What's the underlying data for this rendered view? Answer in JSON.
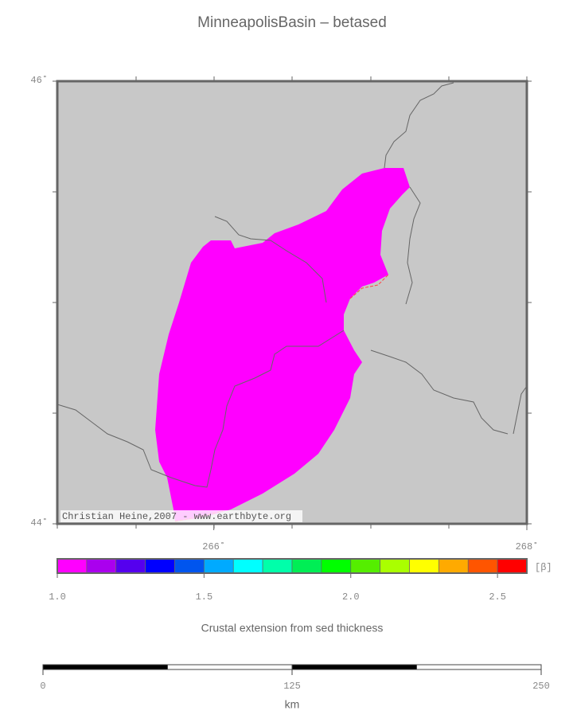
{
  "title": "MinneapolisBasin – betased",
  "map": {
    "xlim": [
      265,
      268
    ],
    "ylim": [
      44,
      46
    ],
    "xticks": [
      {
        "value": 266,
        "label": "266˚"
      },
      {
        "value": 268,
        "label": "268˚"
      }
    ],
    "yticks": [
      {
        "value": 44,
        "label": "44˚"
      },
      {
        "value": 46,
        "label": "46˚"
      }
    ],
    "credit": "Christian Heine,2007 - www.earthbyte.org"
  },
  "colorbar": {
    "xlim": [
      1.0,
      2.6
    ],
    "colors": [
      "#ff00ff",
      "#aa00ee",
      "#5500ee",
      "#0000ff",
      "#0055ee",
      "#00aaff",
      "#00ffff",
      "#00ffaa",
      "#00ee55",
      "#00ff00",
      "#55ee00",
      "#aaff00",
      "#ffff00",
      "#ffaa00",
      "#ff5500",
      "#ff0000"
    ],
    "xticks": [
      {
        "value": 1,
        "label": "1.0"
      },
      1.5,
      {
        "value": 2,
        "label": "2.0"
      },
      2.5
    ],
    "unit": "[β]"
  },
  "caption": "Crustal extension from sed thickness",
  "scalebar": {
    "xlim": [
      0,
      250
    ],
    "xticks": [
      0,
      125,
      250
    ],
    "unit": "km"
  }
}
